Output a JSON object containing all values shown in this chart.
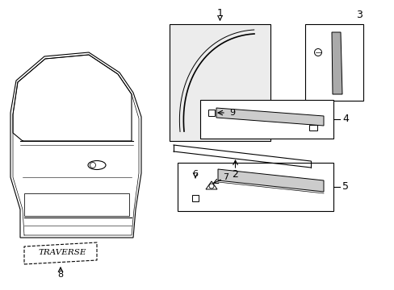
{
  "bg_color": "#ffffff",
  "line_color": "#000000",
  "fig_width": 4.89,
  "fig_height": 3.6,
  "dpi": 100
}
